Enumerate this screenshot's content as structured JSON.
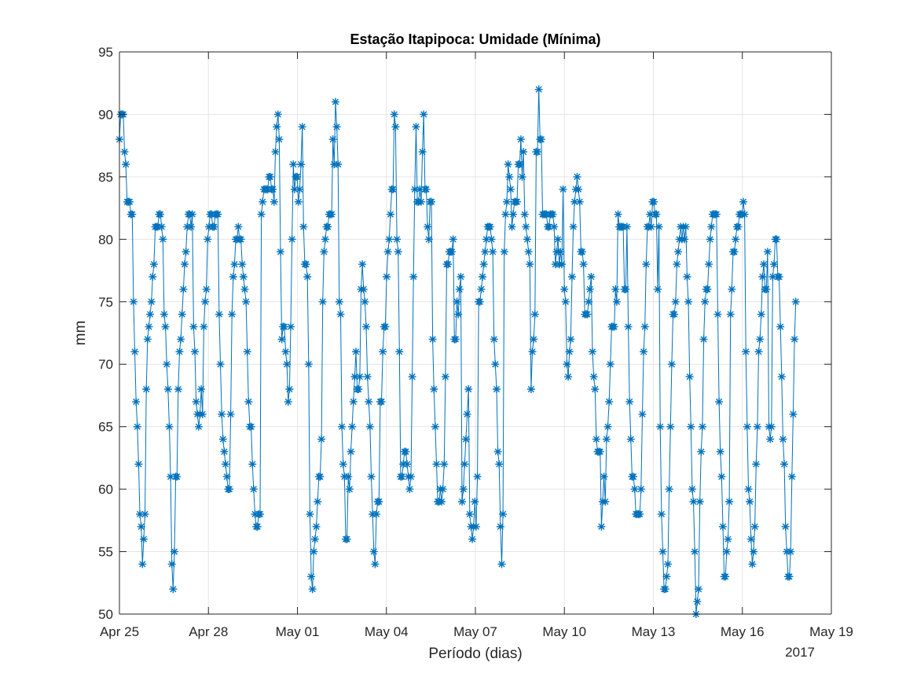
{
  "chart_data": {
    "type": "line",
    "title": "Estação Itapipoca: Umidade (Mínima)",
    "xlabel": "Período (dias)",
    "ylabel": "mm",
    "x_secondary_label": "2017",
    "grid": true,
    "x_range_days": [
      0,
      24
    ],
    "ylim": [
      50,
      95
    ],
    "x_ticks": [
      {
        "day": 0,
        "label": "Apr 25"
      },
      {
        "day": 3,
        "label": "Apr 28"
      },
      {
        "day": 6,
        "label": "May 01"
      },
      {
        "day": 9,
        "label": "May 04"
      },
      {
        "day": 12,
        "label": "May 07"
      },
      {
        "day": 15,
        "label": "May 10"
      },
      {
        "day": 18,
        "label": "May 13"
      },
      {
        "day": 21,
        "label": "May 16"
      },
      {
        "day": 24,
        "label": "May 19"
      }
    ],
    "y_ticks": [
      50,
      55,
      60,
      65,
      70,
      75,
      80,
      85,
      90,
      95
    ],
    "marker": "asterisk",
    "colors": {
      "series": "#0072BD",
      "grid": "#e6e6e6",
      "axis": "#262626"
    },
    "series": [
      {
        "values": [
          88,
          90,
          90,
          90,
          87,
          86,
          83,
          83,
          83,
          82,
          82,
          75,
          71,
          67,
          65,
          62,
          58,
          57,
          54,
          56,
          58,
          68,
          72,
          73,
          74,
          75,
          77,
          78,
          81,
          81,
          81,
          82,
          82,
          81,
          80,
          74,
          73,
          70,
          68,
          65,
          61,
          54,
          52,
          55,
          61,
          61,
          68,
          71,
          72,
          74,
          76,
          78,
          79,
          81,
          82,
          82,
          81,
          82,
          73,
          71,
          67,
          66,
          65,
          66,
          68,
          66,
          73,
          75,
          76,
          80,
          81,
          82,
          82,
          81,
          81,
          82,
          82,
          82,
          74,
          70,
          66,
          64,
          63,
          62,
          61,
          60,
          60,
          66,
          74,
          77,
          78,
          80,
          80,
          81,
          80,
          80,
          78,
          77,
          76,
          75,
          71,
          67,
          65,
          65,
          62,
          60,
          58,
          57,
          57,
          58,
          58,
          82,
          83,
          84,
          84,
          84,
          84,
          85,
          85,
          84,
          84,
          83,
          87,
          89,
          90,
          88,
          79,
          72,
          73,
          73,
          71,
          70,
          67,
          68,
          73,
          80,
          86,
          84,
          85,
          85,
          83,
          84,
          86,
          89,
          81,
          78,
          78,
          77,
          70,
          58,
          53,
          52,
          55,
          56,
          57,
          59,
          61,
          61,
          64,
          75,
          79,
          80,
          81,
          81,
          82,
          82,
          82,
          88,
          86,
          91,
          89,
          86,
          75,
          74,
          65,
          62,
          61,
          56,
          56,
          61,
          60,
          63,
          65,
          67,
          69,
          71,
          68,
          68,
          69,
          76,
          78,
          76,
          75,
          73,
          69,
          67,
          65,
          61,
          58,
          55,
          54,
          58,
          59,
          59,
          67,
          67,
          71,
          73,
          73,
          77,
          79,
          80,
          82,
          84,
          84,
          90,
          89,
          80,
          79,
          71,
          61,
          61,
          62,
          63,
          63,
          62,
          61,
          60,
          61,
          69,
          77,
          84,
          89,
          83,
          83,
          84,
          83,
          87,
          90,
          84,
          84,
          81,
          80,
          83,
          83,
          72,
          68,
          65,
          62,
          59,
          59,
          60,
          59,
          60,
          62,
          69,
          78,
          78,
          79,
          79,
          79,
          80,
          72,
          72,
          75,
          74,
          76,
          77,
          59,
          60,
          62,
          64,
          66,
          68,
          58,
          57,
          56,
          57,
          59,
          57,
          61,
          75,
          75,
          76,
          77,
          78,
          79,
          80,
          81,
          81,
          81,
          80,
          79,
          72,
          70,
          68,
          63,
          62,
          57,
          54,
          58,
          79,
          82,
          83,
          86,
          85,
          84,
          81,
          82,
          83,
          83,
          83,
          86,
          86,
          88,
          85,
          87,
          82,
          81,
          80,
          79,
          78,
          68,
          71,
          72,
          74,
          87,
          87,
          92,
          88,
          88,
          82,
          82,
          82,
          82,
          81,
          81,
          82,
          82,
          82,
          81,
          78,
          79,
          80,
          78,
          79,
          78,
          84,
          76,
          75,
          70,
          69,
          71,
          72,
          77,
          81,
          83,
          84,
          85,
          84,
          83,
          79,
          79,
          78,
          74,
          74,
          74,
          75,
          76,
          77,
          71,
          69,
          68,
          64,
          63,
          63,
          63,
          57,
          59,
          61,
          59,
          64,
          65,
          67,
          70,
          73,
          73,
          73,
          76,
          75,
          82,
          81,
          81,
          81,
          81,
          76,
          76,
          81,
          73,
          67,
          64,
          61,
          61,
          60,
          58,
          58,
          58,
          58,
          60,
          66,
          71,
          73,
          78,
          81,
          81,
          82,
          81,
          83,
          83,
          82,
          82,
          76,
          81,
          65,
          58,
          55,
          52,
          52,
          53,
          54,
          60,
          65,
          70,
          74,
          74,
          75,
          78,
          79,
          80,
          81,
          80,
          81,
          80,
          81,
          77,
          75,
          69,
          65,
          60,
          59,
          55,
          50,
          51,
          52,
          59,
          63,
          65,
          72,
          75,
          76,
          76,
          78,
          80,
          81,
          82,
          82,
          82,
          82,
          74,
          67,
          63,
          61,
          57,
          53,
          53,
          55,
          56,
          59,
          74,
          76,
          79,
          79,
          80,
          81,
          81,
          82,
          82,
          82,
          83,
          82,
          71,
          65,
          60,
          59,
          56,
          54,
          55,
          57,
          62,
          65,
          71,
          72,
          74,
          77,
          78,
          76,
          76,
          79,
          65,
          64,
          65,
          77,
          78,
          80,
          80,
          77,
          77,
          73,
          69,
          64,
          62,
          57,
          55,
          53,
          53,
          55,
          61,
          66,
          72,
          75
        ]
      }
    ]
  }
}
